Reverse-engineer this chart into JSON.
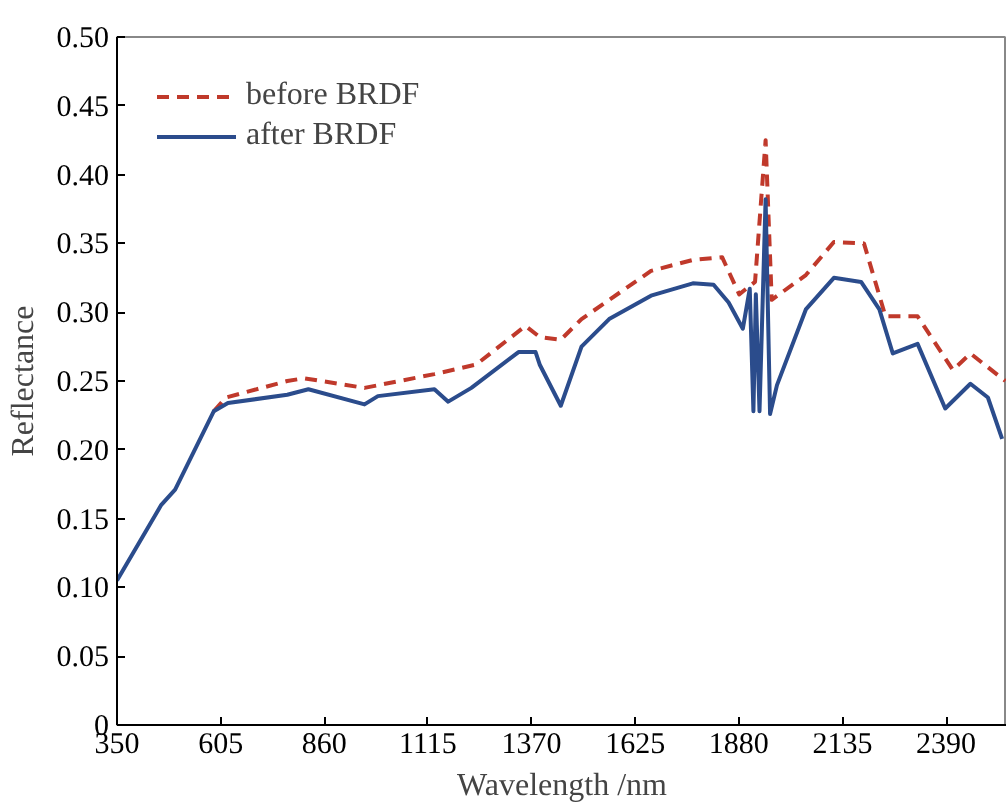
{
  "chart_data": {
    "type": "line",
    "xlabel": "Wavelength /nm",
    "ylabel": "Reflectance",
    "xlim": [
      350,
      2540
    ],
    "xticks": [
      350,
      605,
      860,
      1115,
      1370,
      1625,
      1880,
      2135,
      2390
    ],
    "ylim": [
      0,
      0.5
    ],
    "yticks": [
      0,
      {
        "value": 0.05,
        "label": "0.05"
      },
      {
        "value": 0.1,
        "label": "0.10"
      },
      {
        "value": 0.15,
        "label": "0.15"
      },
      {
        "value": 0.2,
        "label": "0.20"
      },
      {
        "value": 0.25,
        "label": "0.25"
      },
      {
        "value": 0.3,
        "label": "0.30"
      },
      {
        "value": 0.35,
        "label": "0.35"
      },
      {
        "value": 0.4,
        "label": "0.40"
      },
      {
        "value": 0.45,
        "label": "0.45"
      },
      {
        "value": 0.5,
        "label": "0.50"
      }
    ],
    "grid": false,
    "legend": "top left",
    "marker": "none",
    "series": [
      {
        "name": "before BRDF",
        "color": "#c0392b",
        "line_style": "dashed",
        "x": [
          588,
          618,
          769,
          810,
          959,
          1131,
          1234,
          1355,
          1390,
          1442,
          1493,
          1664,
          1767,
          1839,
          1881,
          1920,
          1946,
          1961,
          2045,
          2114,
          2188,
          2241,
          2320,
          2407,
          2450,
          2536
        ],
        "values": [
          0.228,
          0.238,
          0.25,
          0.252,
          0.245,
          0.255,
          0.262,
          0.29,
          0.282,
          0.28,
          0.295,
          0.33,
          0.338,
          0.34,
          0.313,
          0.322,
          0.425,
          0.309,
          0.327,
          0.351,
          0.35,
          0.297,
          0.297,
          0.258,
          0.27,
          0.25
        ]
      },
      {
        "name": "after BRDF",
        "color": "#2b4c8c",
        "line_style": "solid",
        "x": [
          350,
          459,
          493,
          588,
          623,
          769,
          821,
          959,
          992,
          1131,
          1165,
          1222,
          1338,
          1380,
          1390,
          1442,
          1493,
          1561,
          1664,
          1767,
          1818,
          1855,
          1890,
          1907,
          1916,
          1922,
          1931,
          1946,
          1957,
          1974,
          2045,
          2114,
          2181,
          2226,
          2259,
          2320,
          2388,
          2450,
          2493,
          2528
        ],
        "values": [
          0.105,
          0.16,
          0.171,
          0.228,
          0.234,
          0.24,
          0.244,
          0.233,
          0.239,
          0.244,
          0.235,
          0.245,
          0.271,
          0.271,
          0.262,
          0.232,
          0.275,
          0.295,
          0.312,
          0.321,
          0.32,
          0.307,
          0.288,
          0.317,
          0.228,
          0.313,
          0.228,
          0.382,
          0.226,
          0.247,
          0.302,
          0.325,
          0.322,
          0.302,
          0.27,
          0.277,
          0.23,
          0.248,
          0.238,
          0.208
        ]
      }
    ]
  }
}
